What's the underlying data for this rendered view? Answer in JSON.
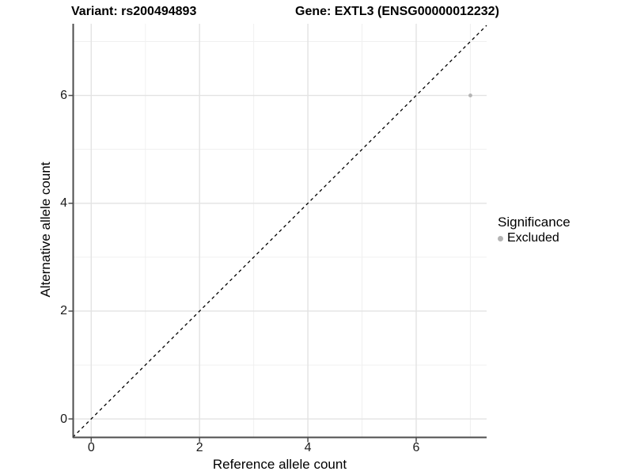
{
  "chart_data": {
    "type": "scatter",
    "titles": {
      "left": "Variant: rs200494893",
      "right": "Gene: EXTL3 (ENSG00000012232)"
    },
    "xlabel": "Reference allele count",
    "ylabel": "Alternative allele count",
    "xlim": [
      -0.34,
      7.3
    ],
    "ylim": [
      -0.35,
      7.33
    ],
    "x_ticks": [
      0,
      2,
      4,
      6
    ],
    "y_ticks": [
      0,
      2,
      4,
      6
    ],
    "grid_major": [
      0,
      2,
      4,
      6
    ],
    "grid_minor": [
      1,
      3,
      5,
      7
    ],
    "grid": true,
    "identity_line": {
      "slope": 1,
      "intercept": 0,
      "style": "dashed",
      "color": "#000000"
    },
    "series": [
      {
        "name": "Excluded",
        "color": "#b4b4b4",
        "points": [
          {
            "x": 7,
            "y": 6
          }
        ]
      }
    ],
    "legend": {
      "title": "Significance",
      "position": "right"
    }
  },
  "colors": {
    "grid_major": "#e3e3e3",
    "grid_minor": "#f0f0f0",
    "axis_line": "#4d4d4d",
    "tick_text": "#1a1a1a",
    "point": "#b4b4b4",
    "dashed_line": "#000000",
    "background": "#ffffff"
  }
}
